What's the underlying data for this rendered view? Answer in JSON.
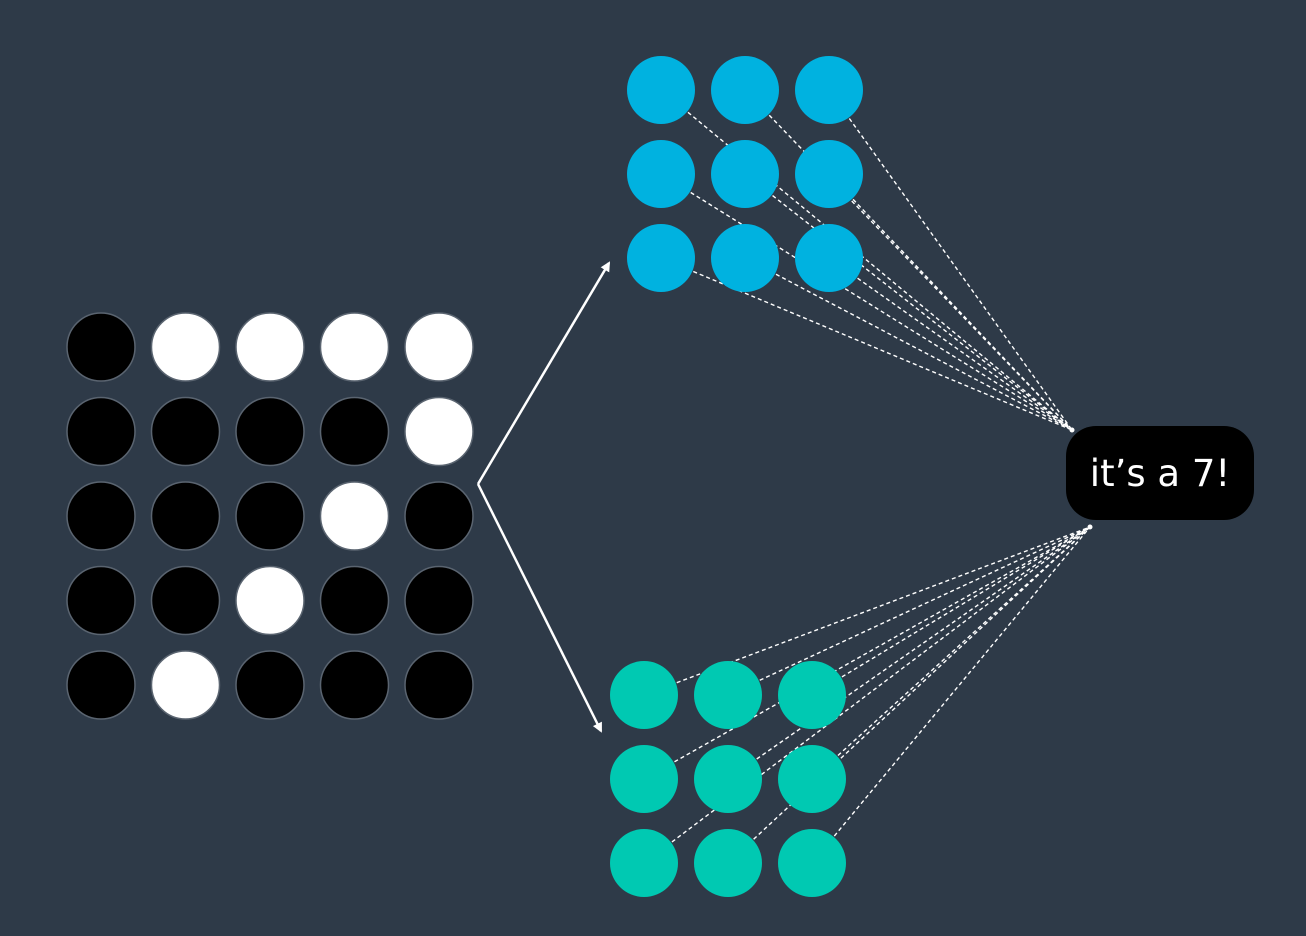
{
  "input_grid": {
    "rows": 5,
    "cols": 5,
    "pixels": [
      [
        0,
        1,
        1,
        1,
        1
      ],
      [
        0,
        0,
        0,
        0,
        1
      ],
      [
        0,
        0,
        0,
        1,
        0
      ],
      [
        0,
        0,
        1,
        0,
        0
      ],
      [
        0,
        1,
        0,
        0,
        0
      ]
    ]
  },
  "feature_maps": [
    {
      "name": "",
      "rows": 3,
      "cols": 3,
      "color": "#00b2e0"
    },
    {
      "name": "",
      "rows": 3,
      "cols": 3,
      "color": "#00c9b2"
    }
  ],
  "output": {
    "label": "it’s a 7!"
  },
  "colors": {
    "background": "#2e3a48",
    "pixel_on": "#ffffff",
    "pixel_off": "#000000",
    "pixel_border": "#5a6470",
    "arrow": "#ffffff",
    "connection": "#ffffff",
    "label_bg": "#000000",
    "label_text": "#ffffff"
  }
}
